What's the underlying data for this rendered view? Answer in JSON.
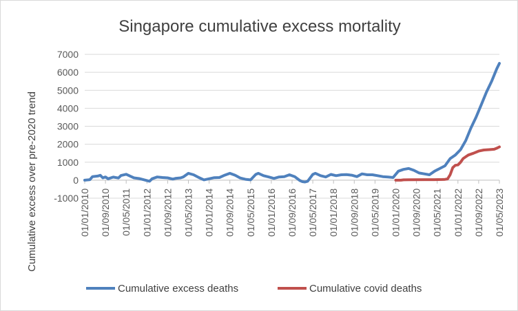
{
  "chart_data": {
    "type": "line",
    "title": "Singapore cumulative excess mortality",
    "xlabel": "",
    "ylabel": "Cumulative excess over pre-2020 trend",
    "ylim": [
      -1000,
      7000
    ],
    "yticks": [
      -1000,
      0,
      1000,
      2000,
      3000,
      4000,
      5000,
      6000,
      7000
    ],
    "xlim": [
      "01/01/2010",
      "01/05/2023"
    ],
    "x_tick_labels": [
      "01/01/2010",
      "01/09/2010",
      "01/05/2011",
      "01/01/2012",
      "01/09/2012",
      "01/05/2013",
      "01/01/2014",
      "01/09/2014",
      "01/05/2015",
      "01/01/2016",
      "01/09/2016",
      "01/05/2017",
      "01/01/2018",
      "01/09/2018",
      "01/05/2019",
      "01/01/2020",
      "01/09/2020",
      "01/05/2021",
      "01/01/2022",
      "01/09/2022",
      "01/05/2023"
    ],
    "grid": "horizontal",
    "legend_position": "bottom",
    "colors": {
      "excess": "#4f81bd",
      "covid": "#c0504d",
      "grid": "#d9d9d9",
      "axis": "#bfbfbf"
    },
    "series": [
      {
        "name": "Cumulative excess deaths",
        "points": [
          [
            "01/01/2010",
            0
          ],
          [
            "01/03/2010",
            30
          ],
          [
            "01/04/2010",
            200
          ],
          [
            "01/06/2010",
            230
          ],
          [
            "01/07/2010",
            270
          ],
          [
            "01/08/2010",
            130
          ],
          [
            "01/09/2010",
            180
          ],
          [
            "01/10/2010",
            80
          ],
          [
            "01/12/2010",
            170
          ],
          [
            "01/02/2011",
            120
          ],
          [
            "01/03/2011",
            260
          ],
          [
            "01/05/2011",
            330
          ],
          [
            "01/06/2011",
            260
          ],
          [
            "01/08/2011",
            130
          ],
          [
            "01/10/2011",
            90
          ],
          [
            "01/12/2011",
            20
          ],
          [
            "01/02/2012",
            -60
          ],
          [
            "01/03/2012",
            80
          ],
          [
            "01/05/2012",
            180
          ],
          [
            "01/07/2012",
            150
          ],
          [
            "01/09/2012",
            130
          ],
          [
            "01/11/2012",
            60
          ],
          [
            "01/12/2012",
            100
          ],
          [
            "01/02/2013",
            130
          ],
          [
            "01/03/2013",
            180
          ],
          [
            "01/05/2013",
            380
          ],
          [
            "01/07/2013",
            300
          ],
          [
            "01/09/2013",
            150
          ],
          [
            "01/11/2013",
            20
          ],
          [
            "01/01/2014",
            80
          ],
          [
            "01/03/2014",
            140
          ],
          [
            "01/05/2014",
            150
          ],
          [
            "01/07/2014",
            280
          ],
          [
            "01/09/2014",
            380
          ],
          [
            "01/11/2014",
            280
          ],
          [
            "01/01/2015",
            120
          ],
          [
            "01/03/2015",
            50
          ],
          [
            "01/05/2015",
            20
          ],
          [
            "01/07/2015",
            320
          ],
          [
            "01/08/2015",
            380
          ],
          [
            "01/10/2015",
            250
          ],
          [
            "01/12/2015",
            180
          ],
          [
            "01/02/2016",
            100
          ],
          [
            "01/04/2016",
            180
          ],
          [
            "01/06/2016",
            200
          ],
          [
            "01/08/2016",
            300
          ],
          [
            "01/10/2016",
            200
          ],
          [
            "01/12/2016",
            -20
          ],
          [
            "01/01/2017",
            -80
          ],
          [
            "01/02/2017",
            -100
          ],
          [
            "01/03/2017",
            -60
          ],
          [
            "01/05/2017",
            320
          ],
          [
            "01/06/2017",
            380
          ],
          [
            "01/08/2017",
            250
          ],
          [
            "01/10/2017",
            180
          ],
          [
            "01/12/2017",
            320
          ],
          [
            "01/02/2018",
            250
          ],
          [
            "01/04/2018",
            300
          ],
          [
            "01/06/2018",
            310
          ],
          [
            "01/08/2018",
            280
          ],
          [
            "01/10/2018",
            200
          ],
          [
            "01/12/2018",
            350
          ],
          [
            "01/02/2019",
            300
          ],
          [
            "01/04/2019",
            300
          ],
          [
            "01/06/2019",
            250
          ],
          [
            "01/08/2019",
            200
          ],
          [
            "01/10/2019",
            180
          ],
          [
            "01/12/2019",
            150
          ],
          [
            "01/02/2020",
            500
          ],
          [
            "01/04/2020",
            600
          ],
          [
            "01/06/2020",
            650
          ],
          [
            "01/08/2020",
            550
          ],
          [
            "01/10/2020",
            400
          ],
          [
            "01/12/2020",
            350
          ],
          [
            "01/02/2021",
            300
          ],
          [
            "01/04/2021",
            500
          ],
          [
            "01/06/2021",
            650
          ],
          [
            "01/08/2021",
            800
          ],
          [
            "01/10/2021",
            1200
          ],
          [
            "01/12/2021",
            1400
          ],
          [
            "01/02/2022",
            1700
          ],
          [
            "01/04/2022",
            2200
          ],
          [
            "01/06/2022",
            2900
          ],
          [
            "01/08/2022",
            3500
          ],
          [
            "01/10/2022",
            4200
          ],
          [
            "01/12/2022",
            4900
          ],
          [
            "01/02/2023",
            5500
          ],
          [
            "01/04/2023",
            6200
          ],
          [
            "01/05/2023",
            6500
          ]
        ]
      },
      {
        "name": "Cumulative covid deaths",
        "points": [
          [
            "01/01/2020",
            0
          ],
          [
            "01/03/2020",
            0
          ],
          [
            "01/04/2020",
            20
          ],
          [
            "01/06/2020",
            26
          ],
          [
            "01/12/2020",
            29
          ],
          [
            "01/04/2021",
            31
          ],
          [
            "01/07/2021",
            36
          ],
          [
            "01/08/2021",
            45
          ],
          [
            "01/09/2021",
            70
          ],
          [
            "01/10/2021",
            300
          ],
          [
            "01/11/2021",
            700
          ],
          [
            "01/12/2021",
            830
          ],
          [
            "01/01/2022",
            850
          ],
          [
            "01/02/2022",
            1000
          ],
          [
            "01/03/2022",
            1200
          ],
          [
            "01/04/2022",
            1300
          ],
          [
            "01/05/2022",
            1400
          ],
          [
            "01/07/2022",
            1500
          ],
          [
            "01/09/2022",
            1620
          ],
          [
            "01/11/2022",
            1680
          ],
          [
            "01/01/2023",
            1700
          ],
          [
            "01/03/2023",
            1720
          ],
          [
            "01/04/2023",
            1780
          ],
          [
            "01/05/2023",
            1850
          ]
        ]
      }
    ]
  }
}
